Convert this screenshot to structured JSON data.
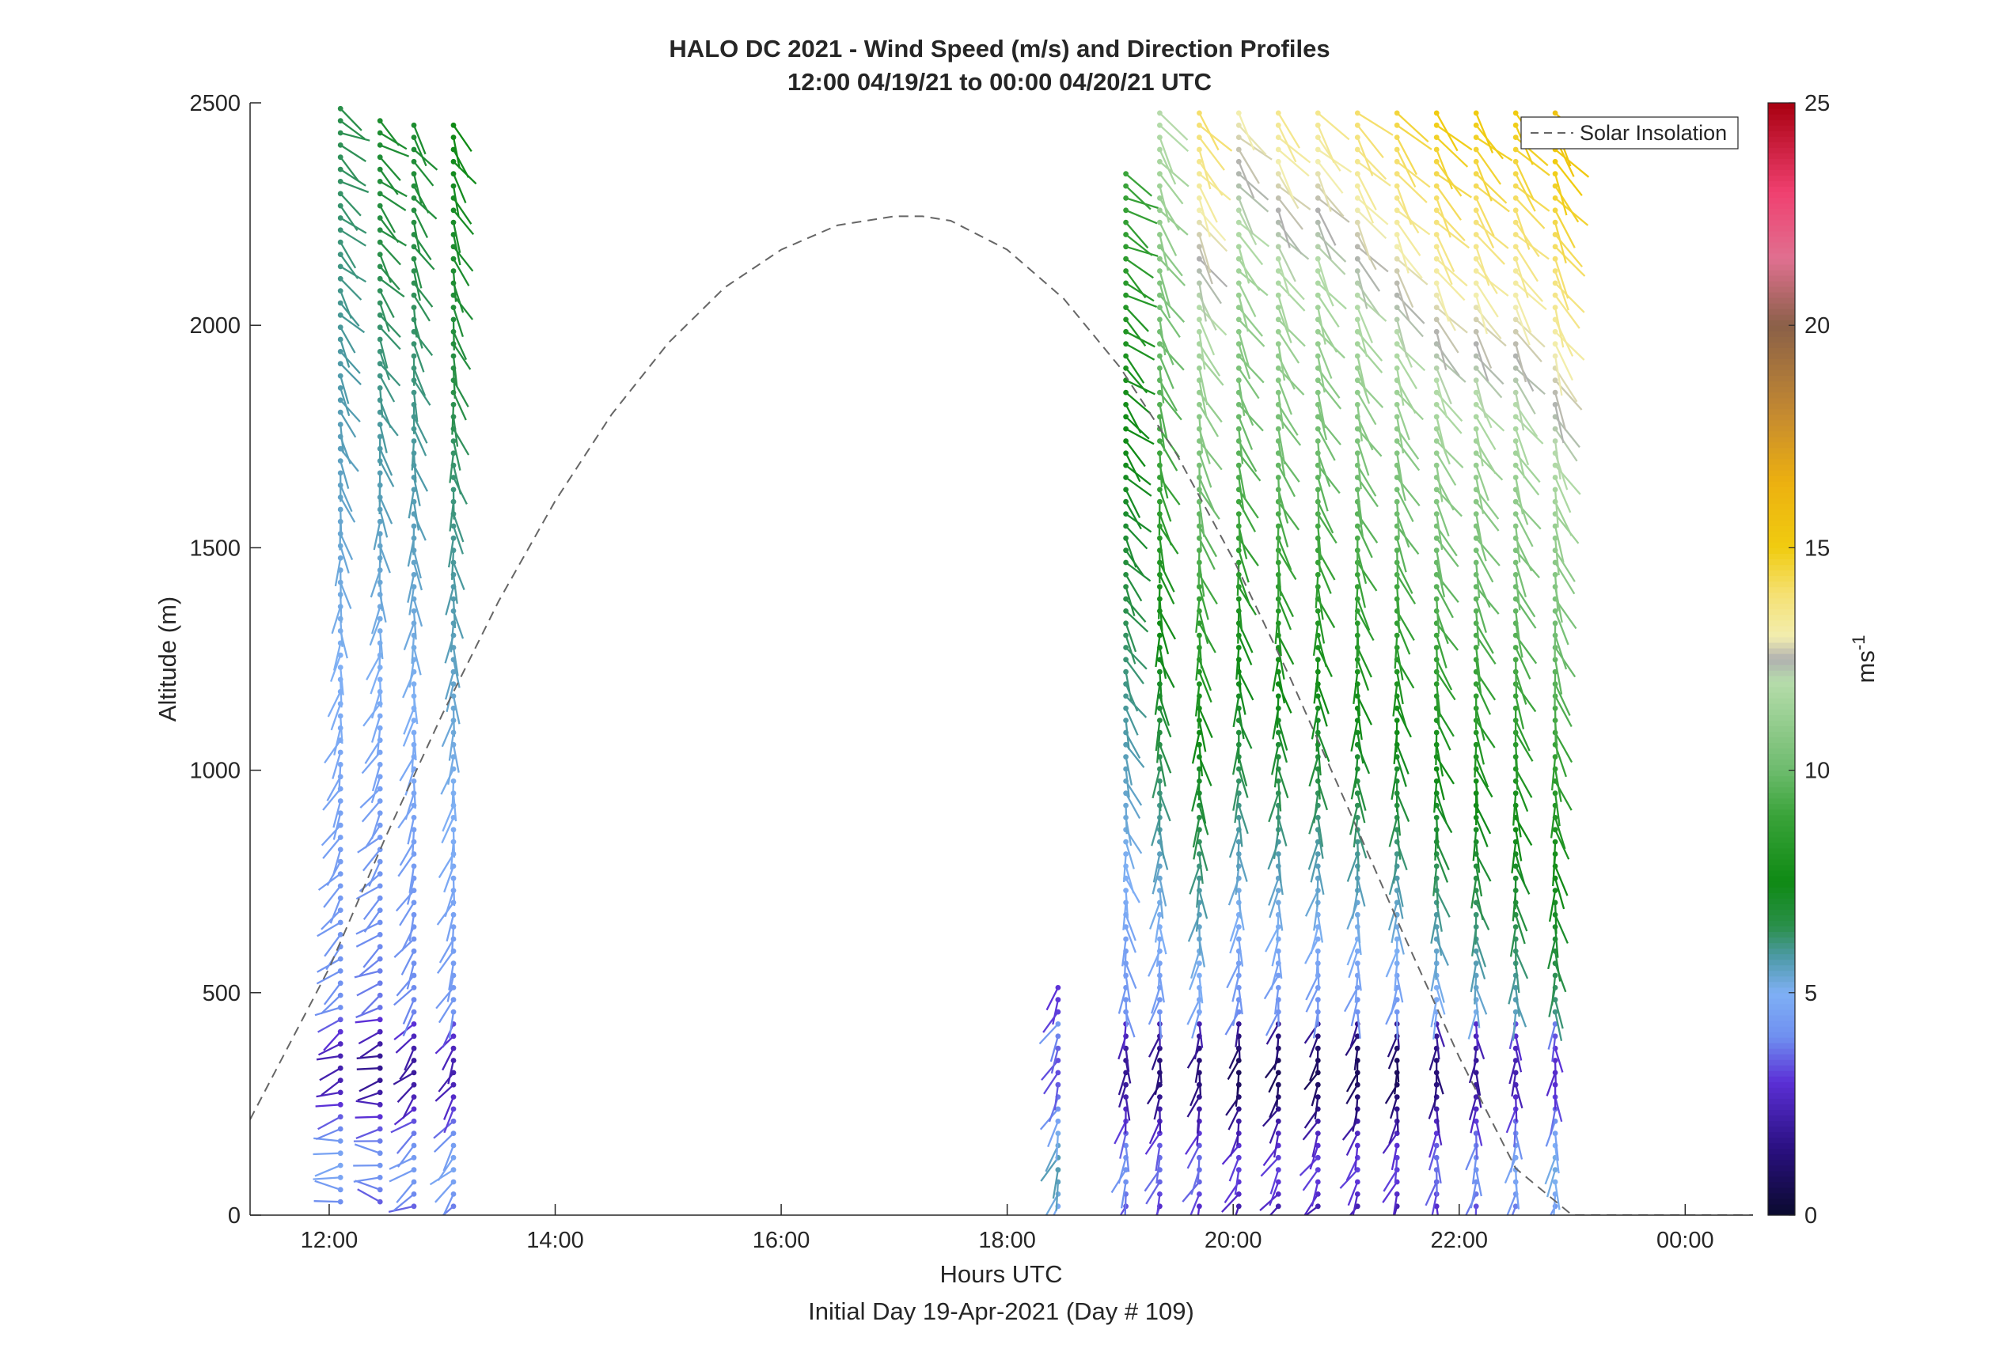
{
  "chart_data": {
    "type": "barb-profile",
    "title": "HALO DC 2021 - Wind Speed (m/s) and Direction Profiles",
    "subtitle": "12:00 04/19/21 to 00:00 04/20/21  UTC",
    "xlabel": "Hours UTC",
    "xlabel2": "Initial Day 19-Apr-2021 (Day # 109)",
    "ylabel": "Altitude (m)",
    "xlim": [
      11.3,
      24.6
    ],
    "ylim": [
      0,
      2500
    ],
    "x_ticks": [
      12,
      14,
      16,
      18,
      20,
      22,
      24
    ],
    "x_tick_labels": [
      "12:00",
      "14:00",
      "16:00",
      "18:00",
      "20:00",
      "22:00",
      "00:00"
    ],
    "y_ticks": [
      0,
      500,
      1000,
      1500,
      2000,
      2500
    ],
    "y_tick_labels": [
      "0",
      "500",
      "1000",
      "1500",
      "2000",
      "2500"
    ],
    "colorbar": {
      "label": "ms",
      "label_superscript": "-1",
      "range": [
        0,
        25
      ],
      "ticks": [
        0,
        5,
        10,
        15,
        20,
        25
      ],
      "tick_labels": [
        "0",
        "5",
        "10",
        "15",
        "20",
        "25"
      ],
      "colormap": [
        {
          "v": 0,
          "c": "#0a0a2e"
        },
        {
          "v": 1.5,
          "c": "#2a1080"
        },
        {
          "v": 3,
          "c": "#5b2fd6"
        },
        {
          "v": 4,
          "c": "#6f8ff0"
        },
        {
          "v": 5,
          "c": "#7fb0f5"
        },
        {
          "v": 5.8,
          "c": "#4e9aa8"
        },
        {
          "v": 6.5,
          "c": "#2a8f4a"
        },
        {
          "v": 7.5,
          "c": "#0f8a14"
        },
        {
          "v": 9,
          "c": "#3aa33a"
        },
        {
          "v": 10,
          "c": "#6dbb6d"
        },
        {
          "v": 12,
          "c": "#b6dcab"
        },
        {
          "v": 12.5,
          "c": "#b0b0b0"
        },
        {
          "v": 13,
          "c": "#f2eeb0"
        },
        {
          "v": 14,
          "c": "#f5e070"
        },
        {
          "v": 15,
          "c": "#f0cc10"
        },
        {
          "v": 16.5,
          "c": "#ecb010"
        },
        {
          "v": 18,
          "c": "#c58a30"
        },
        {
          "v": 20,
          "c": "#8a6048"
        },
        {
          "v": 21.5,
          "c": "#e07090"
        },
        {
          "v": 23,
          "c": "#f04070"
        },
        {
          "v": 25,
          "c": "#a80010"
        }
      ]
    },
    "legend": {
      "entries": [
        "Solar Insolation"
      ],
      "position": "top-right",
      "style": "dashed"
    },
    "solar_insolation": {
      "x": [
        11.3,
        12,
        12.5,
        13,
        13.5,
        14,
        14.5,
        15,
        15.5,
        16,
        16.5,
        17,
        17.25,
        17.5,
        18,
        18.5,
        19,
        19.5,
        20,
        20.5,
        21,
        21.5,
        22,
        22.5,
        23,
        23.3,
        23.5,
        24,
        24.6
      ],
      "y": [
        215,
        555,
        850,
        1125,
        1380,
        1605,
        1800,
        1960,
        2085,
        2170,
        2225,
        2245,
        2245,
        2235,
        2170,
        2060,
        1905,
        1710,
        1475,
        1210,
        925,
        635,
        355,
        105,
        0,
        0,
        0,
        0,
        0
      ]
    },
    "profiles": [
      {
        "time": 12.1,
        "alt_top": 2480,
        "alt_bottom": 30,
        "dir_top": 120,
        "dir_bottom": 275,
        "speed_low": 3.5,
        "speed_high": 6.5
      },
      {
        "time": 12.45,
        "alt_top": 2460,
        "alt_bottom": 30,
        "dir_top": 125,
        "dir_bottom": 285,
        "speed_low": 3.0,
        "speed_high": 7.0
      },
      {
        "time": 12.75,
        "alt_top": 2460,
        "alt_bottom": 20,
        "dir_top": 145,
        "dir_bottom": 240,
        "speed_low": 3.2,
        "speed_high": 7.0
      },
      {
        "time": 13.1,
        "alt_top": 2460,
        "alt_bottom": 20,
        "dir_top": 150,
        "dir_bottom": 225,
        "speed_low": 3.5,
        "speed_high": 7.5
      },
      {
        "time": 18.45,
        "alt_top": 520,
        "alt_bottom": 20,
        "dir_top": 210,
        "dir_bottom": 195,
        "speed_low": 4.5,
        "speed_high": 3.0
      },
      {
        "time": 19.05,
        "alt_top": 2330,
        "alt_bottom": 20,
        "dir_top": 120,
        "dir_bottom": 200,
        "speed_low": 3.0,
        "speed_high": 9.0
      },
      {
        "time": 19.35,
        "alt_top": 2470,
        "alt_bottom": 20,
        "dir_top": 145,
        "dir_bottom": 205,
        "speed_low": 2.5,
        "speed_high": 12.0
      },
      {
        "time": 19.7,
        "alt_top": 2470,
        "alt_bottom": 20,
        "dir_top": 145,
        "dir_bottom": 205,
        "speed_low": 2.5,
        "speed_high": 14.0
      },
      {
        "time": 20.05,
        "alt_top": 2470,
        "alt_bottom": 20,
        "dir_top": 140,
        "dir_bottom": 210,
        "speed_low": 2.0,
        "speed_high": 13.0
      },
      {
        "time": 20.4,
        "alt_top": 2470,
        "alt_bottom": 20,
        "dir_top": 140,
        "dir_bottom": 215,
        "speed_low": 2.0,
        "speed_high": 13.5
      },
      {
        "time": 20.75,
        "alt_top": 2470,
        "alt_bottom": 20,
        "dir_top": 140,
        "dir_bottom": 215,
        "speed_low": 2.0,
        "speed_high": 13.5
      },
      {
        "time": 21.1,
        "alt_top": 2470,
        "alt_bottom": 20,
        "dir_top": 140,
        "dir_bottom": 210,
        "speed_low": 2.0,
        "speed_high": 14.0
      },
      {
        "time": 21.45,
        "alt_top": 2470,
        "alt_bottom": 20,
        "dir_top": 140,
        "dir_bottom": 205,
        "speed_low": 2.0,
        "speed_high": 14.5
      },
      {
        "time": 21.8,
        "alt_top": 2470,
        "alt_bottom": 20,
        "dir_top": 140,
        "dir_bottom": 190,
        "speed_low": 2.5,
        "speed_high": 15.0
      },
      {
        "time": 22.15,
        "alt_top": 2470,
        "alt_bottom": 20,
        "dir_top": 140,
        "dir_bottom": 190,
        "speed_low": 3.0,
        "speed_high": 15.0
      },
      {
        "time": 22.5,
        "alt_top": 2470,
        "alt_bottom": 20,
        "dir_top": 140,
        "dir_bottom": 190,
        "speed_low": 3.5,
        "speed_high": 15.0
      },
      {
        "time": 22.85,
        "alt_top": 2470,
        "alt_bottom": 20,
        "dir_top": 145,
        "dir_bottom": 190,
        "speed_low": 4.0,
        "speed_high": 15.5
      }
    ]
  }
}
